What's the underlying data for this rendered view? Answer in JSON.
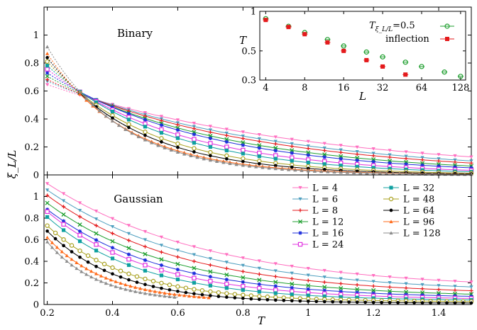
{
  "chart_data": [
    {
      "type": "line",
      "panel": "top",
      "title": "Binary",
      "ylabel": "ξ_L/L",
      "xlim": [
        0.19,
        1.5
      ],
      "ylim": [
        0,
        1.2
      ],
      "yticks": [
        "0",
        "0.2",
        "0.4",
        "0.6",
        "0.8",
        "1"
      ],
      "note": "dotted lines below T≈0.45 connect to low-temperature points",
      "series": [
        {
          "name": "L = 4",
          "color": "#ff6fc0",
          "marker": "tri-down",
          "start": 0.25,
          "x0": 0.2,
          "y0": 0.63,
          "a": 0.45,
          "b": 0.05
        },
        {
          "name": "L = 6",
          "color": "#4f9fbf",
          "marker": "tri-down",
          "start": 0.25,
          "x0": 0.2,
          "y0": 0.65,
          "a": 0.4,
          "b": 0.13
        },
        {
          "name": "L = 8",
          "color": "#e41a1c",
          "marker": "plus",
          "start": 0.25,
          "x0": 0.2,
          "y0": 0.66,
          "a": 0.36,
          "b": 0.18
        },
        {
          "name": "L = 12",
          "color": "#1f9f2f",
          "marker": "x",
          "start": 0.3,
          "x0": 0.2,
          "y0": 0.68,
          "a": 0.33,
          "b": 0.27
        },
        {
          "name": "L = 16",
          "color": "#1d2ddb",
          "marker": "star",
          "start": 0.3,
          "x0": 0.2,
          "y0": 0.7,
          "a": 0.29,
          "b": 0.34
        },
        {
          "name": "L = 24",
          "color": "#e032e0",
          "marker": "square",
          "start": 0.3,
          "x0": 0.2,
          "y0": 0.72,
          "a": 0.26,
          "b": 0.47
        },
        {
          "name": "L = 32",
          "color": "#0fa0a0",
          "marker": "square-f",
          "start": 0.3,
          "x0": 0.2,
          "y0": 0.74,
          "a": 0.2,
          "b": 0.58
        },
        {
          "name": "L = 48",
          "color": "#a8a01e",
          "marker": "circle",
          "start": 0.3,
          "x0": 0.2,
          "y0": 0.76,
          "a": 0.15,
          "b": 0.76
        },
        {
          "name": "L = 64",
          "color": "#000000",
          "marker": "circle-f",
          "start": 0.3,
          "x0": 0.2,
          "y0": 0.78,
          "a": 0.11,
          "b": 0.9
        },
        {
          "name": "L = 96",
          "color": "#ff6a1a",
          "marker": "tri-up",
          "start": 0.3,
          "x0": 0.2,
          "y0": 0.8,
          "a": 0.07,
          "b": 1.05
        },
        {
          "name": "L = 128",
          "color": "#8c8c8c",
          "marker": "tri-up",
          "start": 0.3,
          "x0": 0.2,
          "y0": 0.84,
          "a": 0.05,
          "b": 1.15
        }
      ]
    },
    {
      "type": "line",
      "panel": "bottom",
      "title": "Gaussian",
      "ylabel": "ξ_L/L",
      "xlabel": "T",
      "xlim": [
        0.19,
        1.5
      ],
      "ylim": [
        0,
        1.2
      ],
      "xticks": [
        "0.2",
        "0.4",
        "0.6",
        "0.8",
        "1",
        "1.2",
        "1.4"
      ],
      "yticks": [
        "0",
        "0.2",
        "0.4",
        "0.6",
        "0.8",
        "1"
      ],
      "series": [
        {
          "name": "L = 4",
          "color": "#ff6fc0",
          "marker": "tri-down",
          "y0": 1.12,
          "k": 2.0,
          "tend": 1.5,
          "yend": 0.225
        },
        {
          "name": "L = 6",
          "color": "#4f9fbf",
          "marker": "tri-down",
          "y0": 1.06,
          "k": 2.2,
          "tend": 1.5,
          "yend": 0.18
        },
        {
          "name": "L = 8",
          "color": "#e41a1c",
          "marker": "plus",
          "y0": 1.01,
          "k": 2.4,
          "tend": 1.5,
          "yend": 0.145
        },
        {
          "name": "L = 12",
          "color": "#1f9f2f",
          "marker": "x",
          "y0": 0.94,
          "k": 2.6,
          "tend": 1.5,
          "yend": 0.11
        },
        {
          "name": "L = 16",
          "color": "#1d2ddb",
          "marker": "star",
          "y0": 0.88,
          "k": 2.8,
          "tend": 1.5,
          "yend": 0.09
        },
        {
          "name": "L = 24",
          "color": "#e032e0",
          "marker": "square",
          "y0": 0.86,
          "k": 3.1,
          "tend": 1.5,
          "yend": 0.07
        },
        {
          "name": "L = 32",
          "color": "#0fa0a0",
          "marker": "square-f",
          "y0": 0.81,
          "k": 3.4,
          "tend": 1.5,
          "yend": 0.055
        },
        {
          "name": "L = 48",
          "color": "#a8a01e",
          "marker": "circle",
          "y0": 0.73,
          "k": 4.0,
          "tend": 1.5,
          "yend": 0.04
        },
        {
          "name": "L = 64",
          "color": "#000000",
          "marker": "circle-f",
          "y0": 0.68,
          "k": 4.5,
          "tend": 1.5,
          "yend": 0.02
        },
        {
          "name": "L = 96",
          "color": "#ff6a1a",
          "marker": "tri-up",
          "y0": 0.62,
          "k": 5.5,
          "tend": 0.7,
          "yend": 0.04
        },
        {
          "name": "L = 128",
          "color": "#8c8c8c",
          "marker": "tri-up",
          "y0": 0.58,
          "k": 6.5,
          "tend": 0.6,
          "yend": 0.04
        }
      ],
      "legend": {
        "placement": "upper-right",
        "columns": 2
      }
    },
    {
      "type": "scatter",
      "panel": "inset",
      "xlabel": "L",
      "ylabel": "T",
      "xscale": "log",
      "yscale": "log",
      "xlim": [
        3.6,
        140
      ],
      "ylim": [
        0.3,
        1
      ],
      "xticks": [
        4,
        8,
        16,
        32,
        64,
        128
      ],
      "yticks": [
        0.3,
        0.5,
        1
      ],
      "ytick_labels": [
        "0.3",
        "0.5",
        "1"
      ],
      "series": [
        {
          "name": "T_{ξL/L}=0.5",
          "label_main": "T",
          "label_sub": "ξ_L/L",
          "label_tail": "=0.5",
          "color": "#1f9f2f",
          "marker": "circle-open-errorbar",
          "x": [
            4,
            6,
            8,
            12,
            16,
            24,
            32,
            48,
            64,
            96,
            128
          ],
          "y": [
            0.88,
            0.77,
            0.69,
            0.61,
            0.545,
            0.49,
            0.45,
            0.41,
            0.38,
            0.345,
            0.32
          ]
        },
        {
          "name": "inflection",
          "color": "#e41a1c",
          "marker": "square-filled-errorbar",
          "x": [
            4,
            6,
            8,
            12,
            16,
            24,
            32,
            48
          ],
          "y": [
            0.86,
            0.76,
            0.67,
            0.58,
            0.5,
            0.425,
            0.38,
            0.33
          ]
        }
      ],
      "legend": {
        "placement": "top-right"
      }
    }
  ]
}
